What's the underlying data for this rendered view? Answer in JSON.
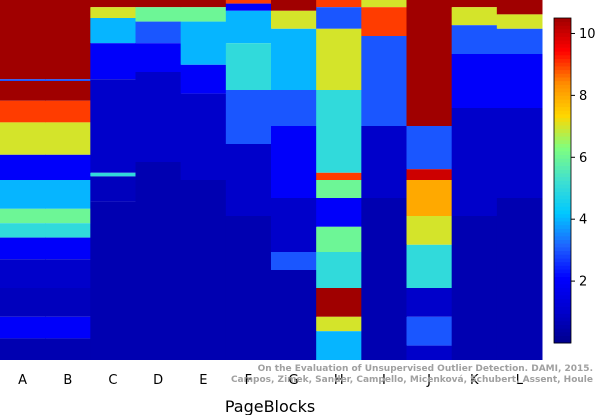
{
  "chart_data": {
    "type": "heatmap",
    "xlabel": "PageBlocks",
    "categories": [
      "A",
      "B",
      "C",
      "D",
      "E",
      "F",
      "G",
      "H",
      "I",
      "J",
      "K",
      "L"
    ],
    "colorbar": {
      "ticks": [
        2,
        4,
        6,
        8,
        10
      ],
      "range": [
        0,
        10.5
      ]
    },
    "columns": {
      "A": [
        [
          0.0,
          0.22,
          10.5
        ],
        [
          0.22,
          0.225,
          3
        ],
        [
          0.225,
          0.28,
          10.5
        ],
        [
          0.28,
          0.34,
          9
        ],
        [
          0.34,
          0.43,
          7
        ],
        [
          0.43,
          0.5,
          2
        ],
        [
          0.5,
          0.58,
          4
        ],
        [
          0.58,
          0.62,
          6
        ],
        [
          0.62,
          0.66,
          5
        ],
        [
          0.66,
          0.72,
          2
        ],
        [
          0.72,
          0.8,
          1
        ],
        [
          0.8,
          0.88,
          0.8
        ],
        [
          0.88,
          0.94,
          2
        ],
        [
          0.94,
          1.0,
          0.6
        ]
      ],
      "B": [
        [
          0.0,
          0.22,
          10.5
        ],
        [
          0.22,
          0.225,
          3
        ],
        [
          0.225,
          0.28,
          10.5
        ],
        [
          0.28,
          0.34,
          9
        ],
        [
          0.34,
          0.43,
          7
        ],
        [
          0.43,
          0.5,
          2
        ],
        [
          0.5,
          0.58,
          4
        ],
        [
          0.58,
          0.62,
          6
        ],
        [
          0.62,
          0.66,
          5
        ],
        [
          0.66,
          0.72,
          2
        ],
        [
          0.72,
          0.8,
          1
        ],
        [
          0.8,
          0.88,
          0.8
        ],
        [
          0.88,
          0.94,
          2
        ],
        [
          0.94,
          1.0,
          0.6
        ]
      ],
      "C": [
        [
          0.0,
          0.02,
          10.5
        ],
        [
          0.02,
          0.05,
          7
        ],
        [
          0.05,
          0.12,
          4
        ],
        [
          0.12,
          0.22,
          2
        ],
        [
          0.22,
          0.48,
          1
        ],
        [
          0.48,
          0.49,
          5
        ],
        [
          0.49,
          0.56,
          0.8
        ],
        [
          0.56,
          1.0,
          0.6
        ]
      ],
      "D": [
        [
          0.0,
          0.02,
          10.5
        ],
        [
          0.02,
          0.06,
          6
        ],
        [
          0.06,
          0.12,
          3
        ],
        [
          0.12,
          0.2,
          2
        ],
        [
          0.2,
          0.45,
          1
        ],
        [
          0.45,
          1.0,
          0.6
        ]
      ],
      "E": [
        [
          0.0,
          0.02,
          10.5
        ],
        [
          0.02,
          0.06,
          6
        ],
        [
          0.06,
          0.18,
          4
        ],
        [
          0.18,
          0.26,
          2
        ],
        [
          0.26,
          0.5,
          1
        ],
        [
          0.5,
          1.0,
          0.6
        ]
      ],
      "F": [
        [
          0.0,
          0.01,
          9
        ],
        [
          0.01,
          0.03,
          2
        ],
        [
          0.03,
          0.12,
          4
        ],
        [
          0.12,
          0.25,
          5
        ],
        [
          0.25,
          0.4,
          3
        ],
        [
          0.4,
          0.6,
          1
        ],
        [
          0.6,
          1.0,
          0.6
        ]
      ],
      "G": [
        [
          0.0,
          0.03,
          10.5
        ],
        [
          0.03,
          0.08,
          7
        ],
        [
          0.08,
          0.25,
          4
        ],
        [
          0.25,
          0.35,
          3
        ],
        [
          0.35,
          0.55,
          2
        ],
        [
          0.55,
          0.7,
          1
        ],
        [
          0.7,
          0.75,
          3
        ],
        [
          0.75,
          1.0,
          0.6
        ]
      ],
      "H": [
        [
          0.0,
          0.02,
          9
        ],
        [
          0.02,
          0.08,
          3
        ],
        [
          0.08,
          0.25,
          7
        ],
        [
          0.25,
          0.48,
          5
        ],
        [
          0.48,
          0.5,
          9
        ],
        [
          0.5,
          0.55,
          6
        ],
        [
          0.55,
          0.63,
          2
        ],
        [
          0.63,
          0.7,
          6
        ],
        [
          0.7,
          0.8,
          5
        ],
        [
          0.8,
          0.88,
          10.5
        ],
        [
          0.88,
          0.92,
          7
        ],
        [
          0.92,
          1.0,
          4
        ]
      ],
      "I": [
        [
          0.0,
          0.02,
          7
        ],
        [
          0.02,
          0.1,
          9
        ],
        [
          0.1,
          0.35,
          3
        ],
        [
          0.35,
          0.55,
          1
        ],
        [
          0.55,
          1.0,
          0.6
        ]
      ],
      "J": [
        [
          0.0,
          0.35,
          10.5
        ],
        [
          0.35,
          0.47,
          3
        ],
        [
          0.47,
          0.5,
          10
        ],
        [
          0.5,
          0.6,
          8
        ],
        [
          0.6,
          0.68,
          7
        ],
        [
          0.68,
          0.8,
          5
        ],
        [
          0.8,
          0.88,
          1
        ],
        [
          0.88,
          0.96,
          3
        ],
        [
          0.96,
          1.0,
          1
        ]
      ],
      "K": [
        [
          0.0,
          0.02,
          10.5
        ],
        [
          0.02,
          0.07,
          7
        ],
        [
          0.07,
          0.15,
          3
        ],
        [
          0.15,
          0.3,
          2
        ],
        [
          0.3,
          0.6,
          1
        ],
        [
          0.6,
          1.0,
          0.6
        ]
      ],
      "L": [
        [
          0.0,
          0.04,
          10.5
        ],
        [
          0.04,
          0.08,
          7
        ],
        [
          0.08,
          0.15,
          3
        ],
        [
          0.15,
          0.3,
          2
        ],
        [
          0.3,
          0.55,
          1
        ],
        [
          0.55,
          1.0,
          0.6
        ]
      ]
    }
  },
  "caption": {
    "line1": "On the Evaluation of Unsupervised Outlier Detection. DAMI, 2015.",
    "line2": "Campos, Zimek, Sander, Campello, Micenková, Schubert, Assent, Houle"
  },
  "colors": {
    "colormap": [
      "#00008b",
      "#0000cd",
      "#0000ff",
      "#1e64ff",
      "#00c8ff",
      "#40e0d0",
      "#7fff7f",
      "#ffd700",
      "#ff8c00",
      "#ff0000",
      "#a00000"
    ]
  }
}
